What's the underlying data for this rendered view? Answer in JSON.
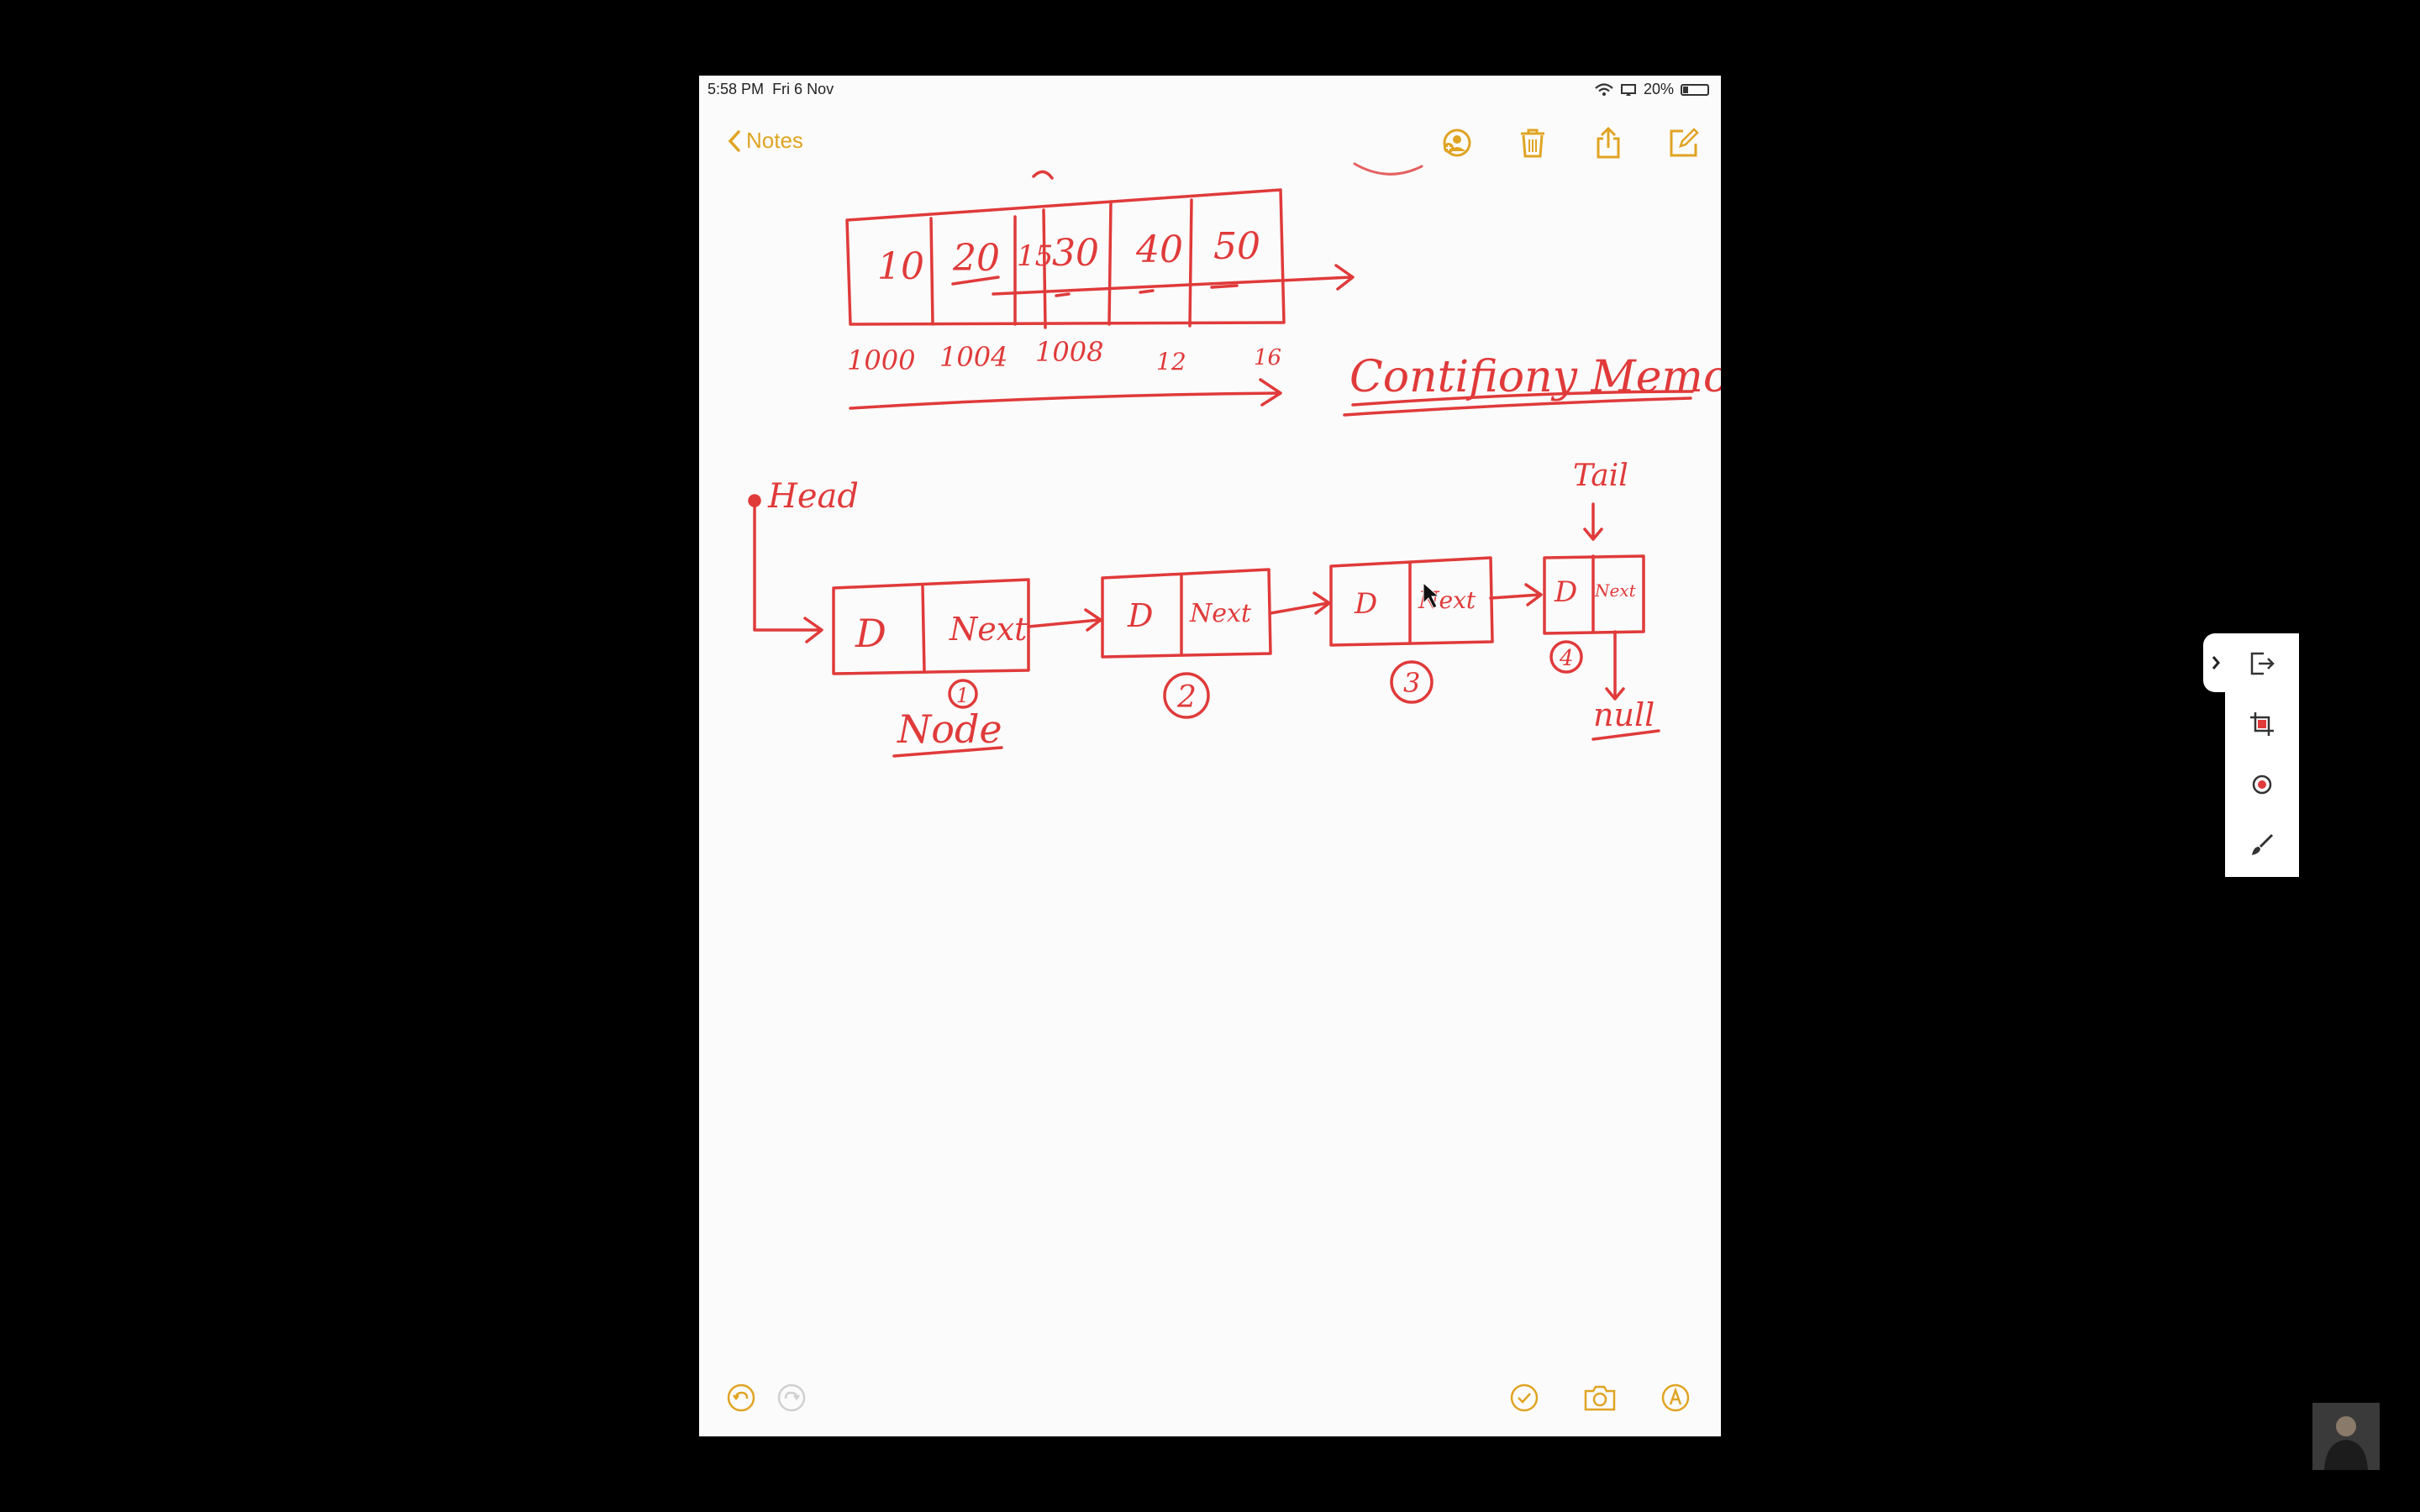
{
  "status_bar": {
    "time": "5:58 PM",
    "date": "Fri 6 Nov",
    "battery": "20%"
  },
  "toolbar": {
    "back_label": "Notes",
    "icons": [
      "person-icon",
      "trash-icon",
      "share-icon",
      "compose-icon"
    ]
  },
  "drawing": {
    "array_values": [
      "10",
      "20",
      "30",
      "40",
      "50"
    ],
    "array_marker": "15",
    "addresses": [
      "1000",
      "1004",
      "1008",
      "12",
      "16"
    ],
    "memory_label": "Contifiony Memory",
    "head_label": "Head",
    "tail_label": "Tail",
    "nodes": [
      {
        "data": "D",
        "next": "Next",
        "number": "1"
      },
      {
        "data": "D",
        "next": "Next",
        "number": "2"
      },
      {
        "data": "D",
        "next": "Next",
        "number": "3"
      },
      {
        "data": "D",
        "next": "Next",
        "number": "4"
      }
    ],
    "node_label": "Node",
    "null_label": "null"
  },
  "bottom_bar": {
    "icons": [
      "undo-icon",
      "redo-icon",
      "checklist-icon",
      "camera-icon",
      "markup-icon"
    ]
  },
  "floating_tools": {
    "icons": [
      "chevron-right-icon",
      "exit-icon",
      "crop-icon",
      "record-icon",
      "brush-icon"
    ]
  },
  "colors": {
    "ink": "#e03a3a",
    "accent": "#e0a423",
    "paper": "#fbfbfb",
    "backdrop": "#000000"
  }
}
